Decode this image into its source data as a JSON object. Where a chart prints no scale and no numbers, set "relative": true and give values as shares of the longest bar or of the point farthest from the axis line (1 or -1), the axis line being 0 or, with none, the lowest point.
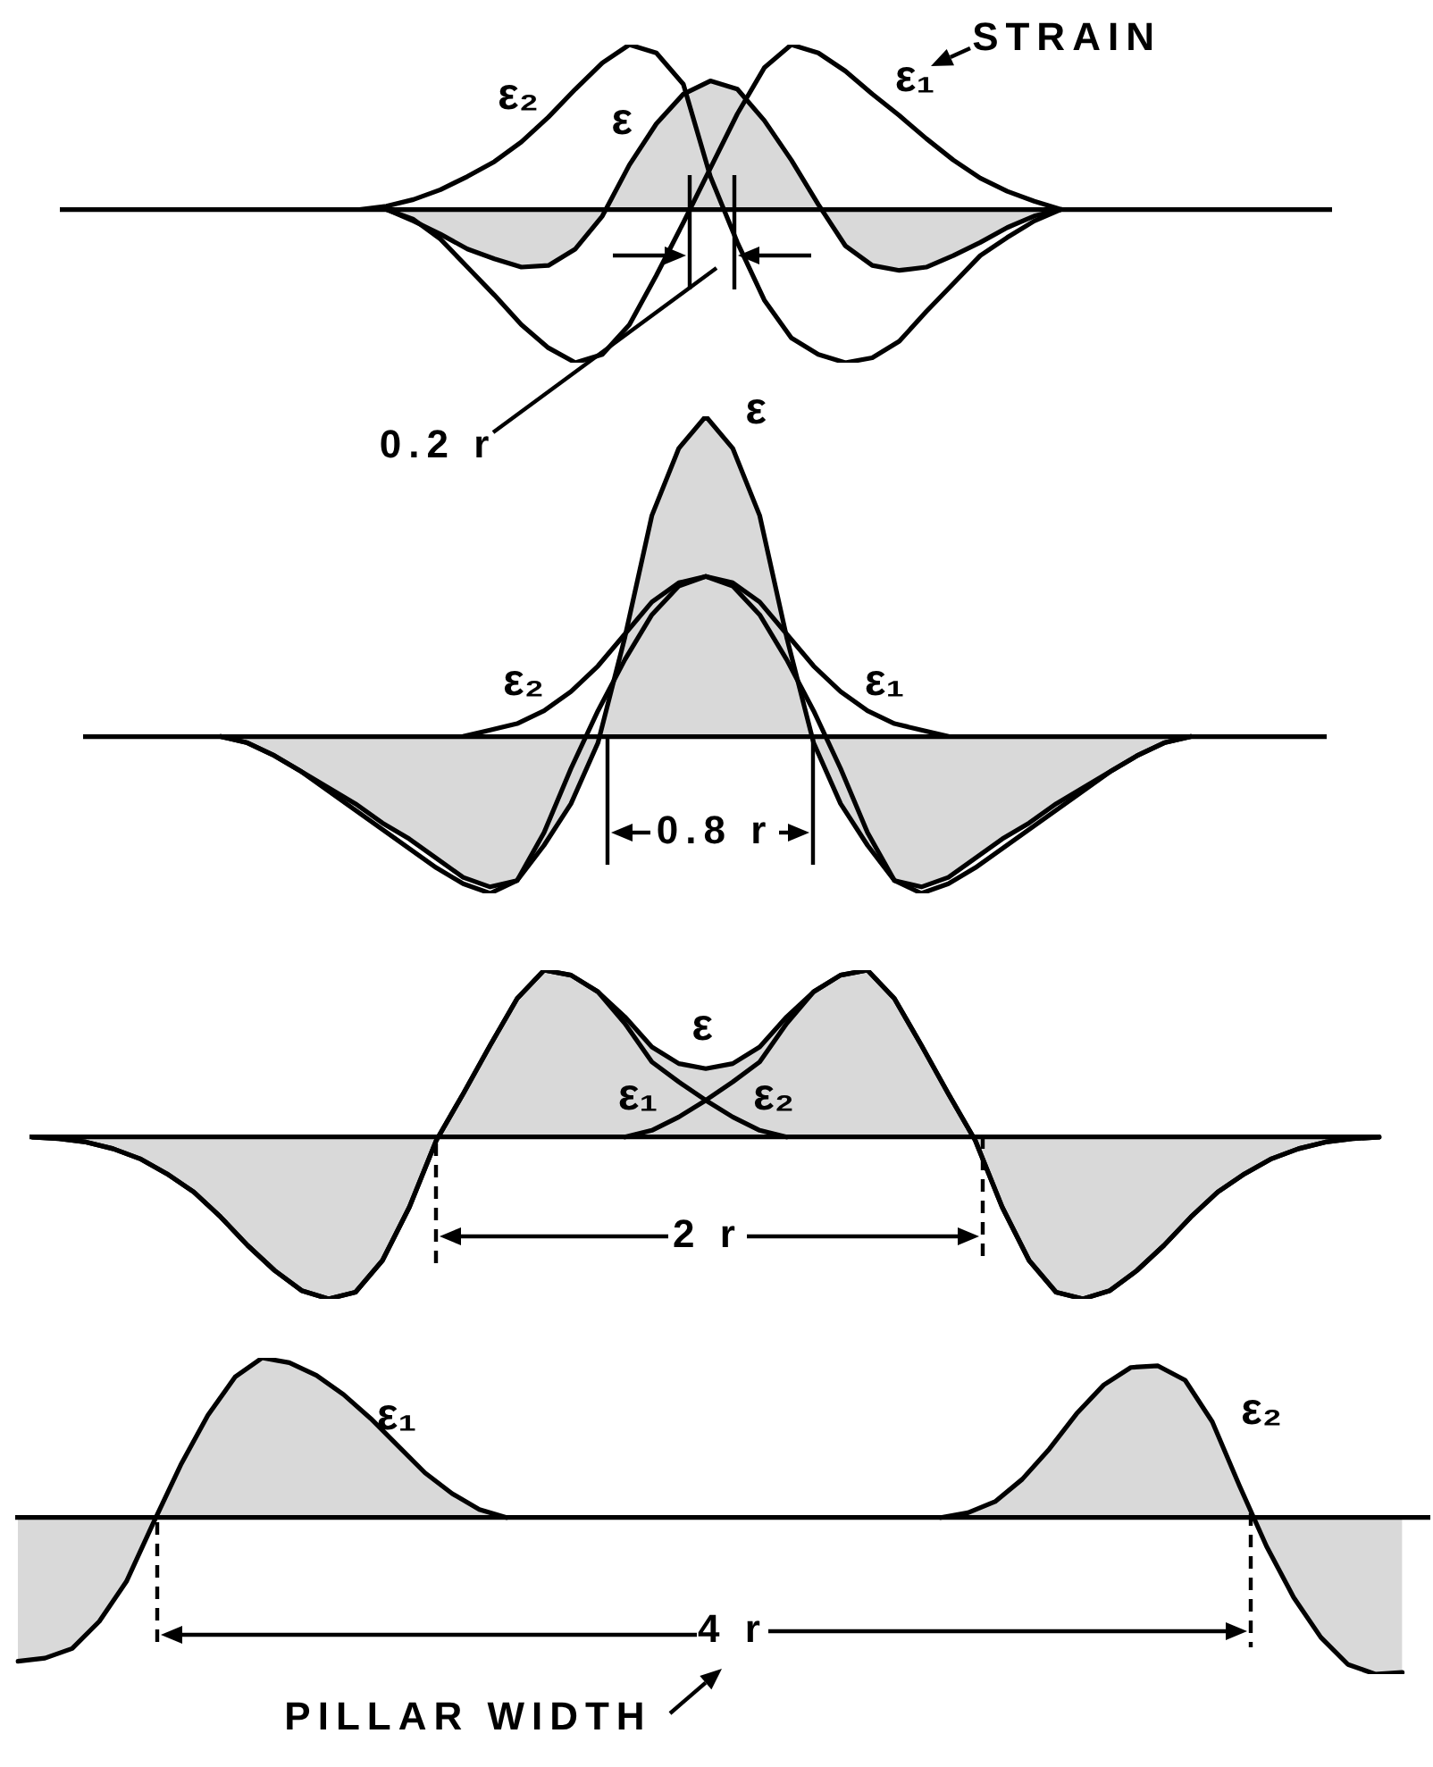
{
  "chart_data": [
    {
      "type": "line",
      "relative": true,
      "annotations": [
        "STRAIN",
        "0.2 r"
      ],
      "categories": [
        null,
        null,
        null,
        null,
        null,
        null,
        null,
        null,
        null,
        null,
        null,
        null,
        null,
        null,
        null,
        null,
        null,
        null,
        null,
        null,
        null,
        null,
        null,
        null,
        null,
        null,
        null,
        null,
        null,
        null,
        null,
        null,
        null,
        null,
        null,
        null,
        null,
        null,
        null,
        null,
        null,
        null,
        null,
        null,
        null,
        null,
        null,
        null
      ],
      "series": [
        {
          "name": "ε₁",
          "color": "#000000",
          "values": [
            null,
            null,
            null,
            null,
            null,
            null,
            null,
            null,
            null,
            null,
            null,
            null,
            0,
            -0.06,
            -0.18,
            -0.35,
            -0.52,
            -0.7,
            -0.84,
            -0.93,
            -0.88,
            -0.7,
            -0.4,
            -0.08,
            0.25,
            0.58,
            0.86,
            1,
            0.95,
            0.84,
            0.7,
            0.57,
            0.43,
            0.3,
            0.19,
            0.11,
            0.05,
            0,
            null,
            null,
            null,
            null,
            null,
            null,
            null,
            null,
            null,
            null
          ]
        },
        {
          "name": "ε₂",
          "color": "#000000",
          "values": [
            null,
            null,
            null,
            null,
            null,
            null,
            null,
            null,
            null,
            null,
            null,
            0,
            0.02,
            0.06,
            0.12,
            0.2,
            0.29,
            0.41,
            0.56,
            0.73,
            0.89,
            1,
            0.95,
            0.76,
            0.2,
            -0.2,
            -0.55,
            -0.78,
            -0.88,
            -0.93,
            -0.9,
            -0.8,
            -0.62,
            -0.45,
            -0.28,
            -0.17,
            -0.07,
            0,
            null,
            null,
            null,
            null,
            null,
            null,
            null,
            null,
            null,
            null
          ]
        },
        {
          "name": "ε",
          "type": "area",
          "color": "#000000",
          "values": [
            null,
            null,
            null,
            null,
            null,
            null,
            null,
            null,
            null,
            null,
            null,
            null,
            0,
            -0.07,
            -0.15,
            -0.24,
            -0.3,
            -0.35,
            -0.34,
            -0.24,
            -0.04,
            0.27,
            0.52,
            0.7,
            0.78,
            0.73,
            0.54,
            0.3,
            0.03,
            -0.22,
            -0.34,
            -0.37,
            -0.35,
            -0.28,
            -0.2,
            -0.11,
            -0.04,
            0,
            null,
            null,
            null,
            null,
            null,
            null,
            null,
            null,
            null,
            null
          ]
        }
      ]
    },
    {
      "type": "line",
      "relative": true,
      "annotations": [
        "0.8 r"
      ],
      "categories": [
        null,
        null,
        null,
        null,
        null,
        null,
        null,
        null,
        null,
        null,
        null,
        null,
        null,
        null,
        null,
        null,
        null,
        null,
        null,
        null,
        null,
        null,
        null,
        null,
        null,
        null,
        null,
        null,
        null,
        null,
        null,
        null,
        null,
        null,
        null,
        null,
        null,
        null,
        null,
        null,
        null,
        null,
        null,
        null,
        null,
        null,
        null
      ],
      "series": [
        {
          "name": "ε₁",
          "color": "#000000",
          "values": [
            null,
            null,
            null,
            null,
            null,
            0,
            -0.02,
            -0.06,
            -0.11,
            -0.17,
            -0.23,
            -0.29,
            -0.35,
            -0.41,
            -0.46,
            -0.49,
            -0.45,
            -0.3,
            -0.1,
            0.08,
            0.24,
            0.38,
            0.47,
            0.5,
            0.48,
            0.42,
            0.32,
            0.22,
            0.14,
            0.08,
            0.04,
            0.02,
            0,
            null,
            null,
            null,
            null,
            null,
            null,
            null,
            null,
            null,
            null,
            null,
            null,
            null,
            null
          ]
        },
        {
          "name": "ε₂",
          "color": "#000000",
          "values": [
            null,
            null,
            null,
            null,
            null,
            null,
            null,
            null,
            null,
            null,
            null,
            null,
            null,
            null,
            0,
            0.02,
            0.04,
            0.08,
            0.14,
            0.22,
            0.32,
            0.42,
            0.48,
            0.5,
            0.47,
            0.38,
            0.24,
            0.08,
            -0.1,
            -0.3,
            -0.45,
            -0.49,
            -0.46,
            -0.41,
            -0.35,
            -0.29,
            -0.23,
            -0.17,
            -0.11,
            -0.06,
            -0.02,
            0,
            null,
            null,
            null,
            null,
            null
          ]
        },
        {
          "name": "ε",
          "type": "area",
          "color": "#000000",
          "values": [
            null,
            null,
            null,
            null,
            null,
            0,
            -0.02,
            -0.06,
            -0.11,
            -0.16,
            -0.21,
            -0.27,
            -0.32,
            -0.38,
            -0.44,
            -0.47,
            -0.45,
            -0.34,
            -0.21,
            -0.02,
            0.31,
            0.69,
            0.9,
            1,
            0.9,
            0.69,
            0.31,
            -0.02,
            -0.21,
            -0.34,
            -0.45,
            -0.47,
            -0.44,
            -0.38,
            -0.32,
            -0.27,
            -0.21,
            -0.16,
            -0.11,
            -0.06,
            -0.02,
            0,
            null,
            null,
            null,
            null,
            null
          ]
        }
      ]
    },
    {
      "type": "line",
      "relative": true,
      "annotations": [
        "2 r"
      ],
      "categories": [
        null,
        null,
        null,
        null,
        null,
        null,
        null,
        null,
        null,
        null,
        null,
        null,
        null,
        null,
        null,
        null,
        null,
        null,
        null,
        null,
        null,
        null,
        null,
        null,
        null,
        null,
        null,
        null,
        null,
        null,
        null,
        null,
        null,
        null,
        null,
        null,
        null,
        null,
        null,
        null,
        null,
        null,
        null,
        null,
        null,
        null,
        null,
        null,
        null,
        null,
        null
      ],
      "series": [
        {
          "name": "ε₁",
          "color": "#000000",
          "values": [
            0,
            -0.01,
            -0.03,
            -0.07,
            -0.13,
            -0.22,
            -0.33,
            -0.48,
            -0.65,
            -0.8,
            -0.92,
            -0.97,
            -0.93,
            -0.74,
            -0.42,
            -0.02,
            0.26,
            0.55,
            0.83,
            1,
            0.97,
            0.87,
            0.68,
            0.45,
            0.33,
            0.22,
            0.12,
            0.04,
            0,
            null,
            null,
            null,
            null,
            null,
            null,
            null,
            null,
            null,
            null,
            null,
            null,
            null,
            null,
            null,
            null,
            null,
            null,
            null,
            null,
            null,
            null
          ]
        },
        {
          "name": "ε₂",
          "color": "#000000",
          "values": [
            null,
            null,
            null,
            null,
            null,
            null,
            null,
            null,
            null,
            null,
            null,
            null,
            null,
            null,
            null,
            null,
            null,
            null,
            null,
            null,
            null,
            null,
            0,
            0.04,
            0.12,
            0.22,
            0.33,
            0.45,
            0.68,
            0.87,
            0.97,
            1,
            0.83,
            0.55,
            0.26,
            -0.02,
            -0.42,
            -0.74,
            -0.93,
            -0.97,
            -0.92,
            -0.8,
            -0.65,
            -0.48,
            -0.33,
            -0.22,
            -0.13,
            -0.07,
            -0.03,
            -0.01,
            0
          ]
        },
        {
          "name": "ε",
          "type": "area",
          "color": "#000000",
          "values": [
            0,
            -0.01,
            -0.03,
            -0.07,
            -0.13,
            -0.22,
            -0.33,
            -0.48,
            -0.65,
            -0.8,
            -0.92,
            -0.97,
            -0.93,
            -0.74,
            -0.42,
            -0.02,
            0.26,
            0.55,
            0.83,
            1,
            0.97,
            0.87,
            0.72,
            0.54,
            0.44,
            0.41,
            0.44,
            0.54,
            0.72,
            0.87,
            0.97,
            1,
            0.83,
            0.55,
            0.26,
            -0.02,
            -0.42,
            -0.74,
            -0.93,
            -0.97,
            -0.92,
            -0.8,
            -0.65,
            -0.48,
            -0.33,
            -0.22,
            -0.13,
            -0.07,
            -0.03,
            -0.01,
            0
          ]
        }
      ]
    },
    {
      "type": "area",
      "relative": true,
      "annotations": [
        "4 r",
        "PILLAR WIDTH"
      ],
      "categories": [
        null,
        null,
        null,
        null,
        null,
        null,
        null,
        null,
        null,
        null,
        null,
        null,
        null,
        null,
        null,
        null,
        null,
        null,
        null,
        null,
        null,
        null,
        null,
        null,
        null,
        null,
        null,
        null,
        null,
        null,
        null,
        null,
        null,
        null,
        null,
        null,
        null,
        null,
        null,
        null,
        null,
        null,
        null,
        null,
        null,
        null,
        null,
        null,
        null,
        null,
        null,
        null,
        null
      ],
      "series": [
        {
          "name": "ε₁",
          "color": "#000000",
          "values": [
            -0.9,
            -0.88,
            -0.82,
            -0.65,
            -0.4,
            -0.03,
            0.33,
            0.64,
            0.88,
            1,
            0.97,
            0.89,
            0.77,
            0.62,
            0.45,
            0.28,
            0.15,
            0.05,
            0,
            null,
            null,
            null,
            null,
            null,
            null,
            null,
            null,
            null,
            null,
            null,
            null,
            null,
            null,
            null,
            null,
            null,
            null,
            null,
            null,
            null,
            null,
            null,
            null,
            null,
            null,
            null,
            null,
            null,
            null,
            null,
            null,
            null,
            null
          ]
        },
        {
          "name": "ε₂",
          "color": "#000000",
          "values": [
            null,
            null,
            null,
            null,
            null,
            null,
            null,
            null,
            null,
            null,
            null,
            null,
            null,
            null,
            null,
            null,
            null,
            null,
            null,
            null,
            null,
            null,
            null,
            null,
            null,
            null,
            null,
            null,
            null,
            null,
            null,
            null,
            null,
            null,
            0,
            0.03,
            0.1,
            0.24,
            0.43,
            0.65,
            0.83,
            0.94,
            0.95,
            0.86,
            0.6,
            0.2,
            -0.18,
            -0.5,
            -0.75,
            -0.92,
            -0.98,
            -0.97,
            null
          ]
        }
      ]
    }
  ]
}
